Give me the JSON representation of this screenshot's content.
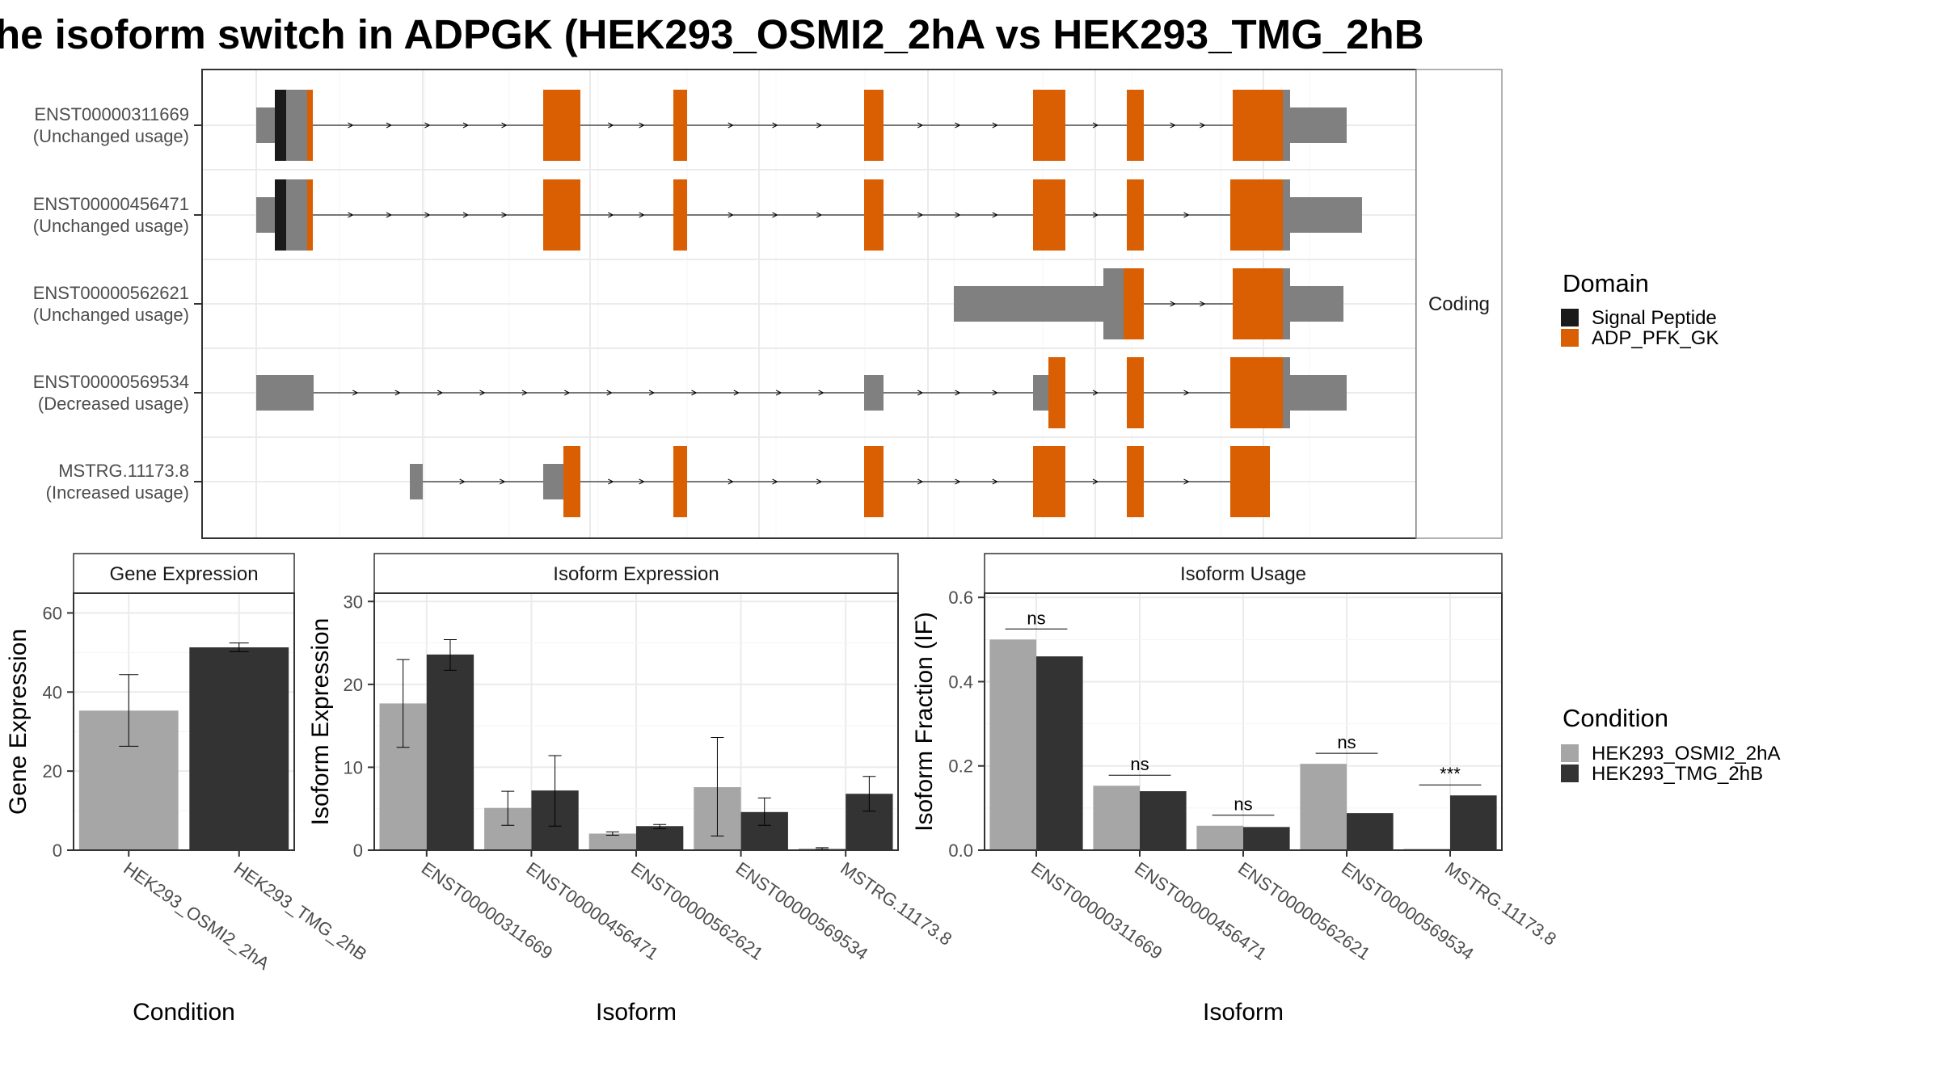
{
  "title": "he isoform switch in ADPGK (HEK293_OSMI2_2hA vs HEK293_TMG_2hB",
  "colors": {
    "signal_peptide": "#1a1a1a",
    "adp_pfk_gk": "#d95f02",
    "noncoding": "#808080",
    "cond_a": "#a6a6a6",
    "cond_b": "#333333"
  },
  "structure": {
    "facet_label": "Coding",
    "transcripts": [
      {
        "id": "ENST00000311669",
        "status": "(Unchanged usage)"
      },
      {
        "id": "ENST00000456471",
        "status": "(Unchanged usage)"
      },
      {
        "id": "ENST00000562621",
        "status": "(Unchanged usage)"
      },
      {
        "id": "ENST00000569534",
        "status": "(Decreased usage)"
      },
      {
        "id": "MSTRG.11173.8",
        "status": "(Increased usage)"
      }
    ]
  },
  "legend_domain": {
    "title": "Domain",
    "items": [
      {
        "label": "Signal Peptide",
        "color": "#1a1a1a"
      },
      {
        "label": "ADP_PFK_GK",
        "color": "#d95f02"
      }
    ]
  },
  "legend_condition": {
    "title": "Condition",
    "items": [
      {
        "label": "HEK293_OSMI2_2hA",
        "color": "#a6a6a6"
      },
      {
        "label": "HEK293_TMG_2hB",
        "color": "#333333"
      }
    ]
  },
  "chart_data": [
    {
      "type": "bar",
      "title": "Gene Expression",
      "xlabel": "Condition",
      "ylabel": "Gene Expression",
      "categories": [
        "HEK293_OSMI2_2hA",
        "HEK293_TMG_2hB"
      ],
      "values": [
        35.3,
        51.3
      ],
      "error_low": [
        26.3,
        50.2
      ],
      "error_high": [
        44.4,
        52.4
      ],
      "ylim": [
        0,
        65
      ],
      "yticks": [
        0,
        20,
        40,
        60
      ]
    },
    {
      "type": "bar",
      "title": "Isoform Expression",
      "xlabel": "Isoform",
      "ylabel": "Isoform Expression",
      "categories": [
        "ENST00000311669",
        "ENST00000456471",
        "ENST00000562621",
        "ENST00000569534",
        "MSTRG.11173.8"
      ],
      "series": [
        {
          "name": "HEK293_OSMI2_2hA",
          "values": [
            17.7,
            5.1,
            2.0,
            7.6,
            0.2
          ],
          "error_low": [
            12.4,
            3.0,
            1.8,
            1.7,
            0.1
          ],
          "error_high": [
            23.0,
            7.1,
            2.2,
            13.6,
            0.3
          ]
        },
        {
          "name": "HEK293_TMG_2hB",
          "values": [
            23.6,
            7.2,
            2.9,
            4.6,
            6.8
          ],
          "error_low": [
            21.7,
            2.9,
            2.6,
            3.0,
            4.7
          ],
          "error_high": [
            25.4,
            11.4,
            3.1,
            6.3,
            8.9
          ]
        }
      ],
      "ylim": [
        0,
        31
      ],
      "yticks": [
        0,
        10,
        20,
        30
      ]
    },
    {
      "type": "bar",
      "title": "Isoform Usage",
      "xlabel": "Isoform",
      "ylabel": "Isoform Fraction (IF)",
      "categories": [
        "ENST00000311669",
        "ENST00000456471",
        "ENST00000562621",
        "ENST00000569534",
        "MSTRG.11173.8"
      ],
      "series": [
        {
          "name": "HEK293_OSMI2_2hA",
          "values": [
            0.5,
            0.153,
            0.058,
            0.205,
            0.003
          ]
        },
        {
          "name": "HEK293_TMG_2hB",
          "values": [
            0.46,
            0.14,
            0.055,
            0.088,
            0.13
          ]
        }
      ],
      "significance": [
        "ns",
        "ns",
        "ns",
        "ns",
        "***"
      ],
      "significance_y": [
        0.525,
        0.178,
        0.083,
        0.23,
        0.155
      ],
      "ylim": [
        0,
        0.61
      ],
      "yticks": [
        0.0,
        0.2,
        0.4,
        0.6
      ],
      "ytick_labels": [
        "0.0",
        "0.2",
        "0.4",
        "0.6"
      ]
    }
  ]
}
